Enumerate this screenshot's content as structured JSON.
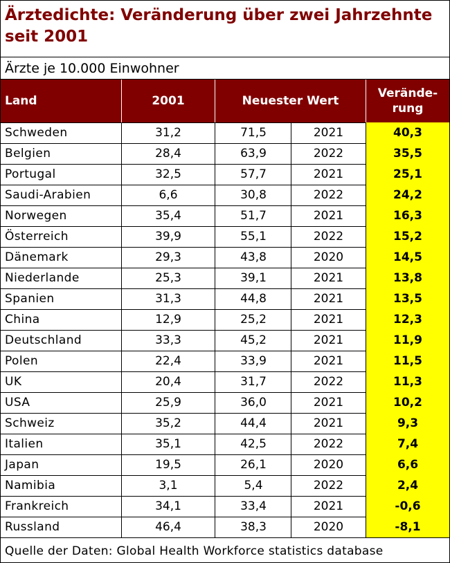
{
  "title": "Ärztedichte: Veränderung über zwei Jahrzehnte seit 2001",
  "subtitle": "Ärzte je 10.000 Einwohner",
  "headers": {
    "land": "Land",
    "y2001": "2001",
    "latest": "Neuester Wert",
    "change": "Verände-\nrung"
  },
  "rows": [
    {
      "land": "Schweden",
      "v2001": "31,2",
      "latest": "71,5",
      "year": "2021",
      "change": "40,3"
    },
    {
      "land": "Belgien",
      "v2001": "28,4",
      "latest": "63,9",
      "year": "2022",
      "change": "35,5"
    },
    {
      "land": "Portugal",
      "v2001": "32,5",
      "latest": "57,7",
      "year": "2021",
      "change": "25,1"
    },
    {
      "land": "Saudi-Arabien",
      "v2001": "6,6",
      "latest": "30,8",
      "year": "2022",
      "change": "24,2"
    },
    {
      "land": "Norwegen",
      "v2001": "35,4",
      "latest": "51,7",
      "year": "2021",
      "change": "16,3"
    },
    {
      "land": "Österreich",
      "v2001": "39,9",
      "latest": "55,1",
      "year": "2022",
      "change": "15,2"
    },
    {
      "land": "Dänemark",
      "v2001": "29,3",
      "latest": "43,8",
      "year": "2020",
      "change": "14,5"
    },
    {
      "land": "Niederlande",
      "v2001": "25,3",
      "latest": "39,1",
      "year": "2021",
      "change": "13,8"
    },
    {
      "land": "Spanien",
      "v2001": "31,3",
      "latest": "44,8",
      "year": "2021",
      "change": "13,5"
    },
    {
      "land": "China",
      "v2001": "12,9",
      "latest": "25,2",
      "year": "2021",
      "change": "12,3"
    },
    {
      "land": "Deutschland",
      "v2001": "33,3",
      "latest": "45,2",
      "year": "2021",
      "change": "11,9"
    },
    {
      "land": "Polen",
      "v2001": "22,4",
      "latest": "33,9",
      "year": "2021",
      "change": "11,5"
    },
    {
      "land": "UK",
      "v2001": "20,4",
      "latest": "31,7",
      "year": "2022",
      "change": "11,3"
    },
    {
      "land": "USA",
      "v2001": "25,9",
      "latest": "36,0",
      "year": "2021",
      "change": "10,2"
    },
    {
      "land": "Schweiz",
      "v2001": "35,2",
      "latest": "44,4",
      "year": "2021",
      "change": "9,3"
    },
    {
      "land": "Italien",
      "v2001": "35,1",
      "latest": "42,5",
      "year": "2022",
      "change": "7,4"
    },
    {
      "land": "Japan",
      "v2001": "19,5",
      "latest": "26,1",
      "year": "2020",
      "change": "6,6"
    },
    {
      "land": "Namibia",
      "v2001": "3,1",
      "latest": "5,4",
      "year": "2022",
      "change": "2,4"
    },
    {
      "land": "Frankreich",
      "v2001": "34,1",
      "latest": "33,4",
      "year": "2021",
      "change": "-0,6"
    },
    {
      "land": "Russland",
      "v2001": "46,4",
      "latest": "38,3",
      "year": "2020",
      "change": "-8,1"
    }
  ],
  "footer": "Quelle der Daten: Global Health Workforce statistics database",
  "colors": {
    "title": "#800000",
    "header_bg": "#800000",
    "header_text": "#ffffff",
    "highlight": "#ffff00"
  }
}
